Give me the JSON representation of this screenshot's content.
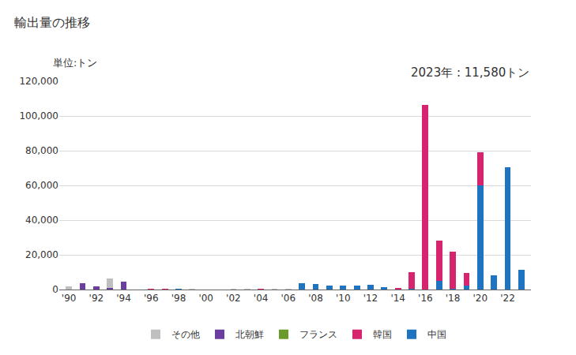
{
  "chart_data": {
    "type": "bar",
    "title": "輸出量の推移",
    "y_label": "単位:トン",
    "annotations": [
      "2023年 : 11,580トン"
    ],
    "categories": [
      "'90",
      null,
      "'92",
      null,
      "'94",
      null,
      "'96",
      null,
      "'98",
      null,
      "'00",
      null,
      "'02",
      null,
      "'04",
      null,
      "'06",
      null,
      "'08",
      null,
      "'10",
      null,
      "'12",
      null,
      "'14",
      null,
      "'16",
      null,
      "'18",
      null,
      "'20",
      null,
      "'22",
      null
    ],
    "series": [
      {
        "name": "中国",
        "color": "#1f74c1",
        "values": [
          0,
          0,
          0,
          0,
          0,
          0,
          0,
          0,
          300,
          0,
          0,
          0,
          0,
          0,
          0,
          0,
          0,
          3800,
          3000,
          2200,
          2500,
          2200,
          2800,
          1500,
          0,
          300,
          0,
          5000,
          300,
          2500,
          60000,
          8300,
          70500,
          11580
        ]
      },
      {
        "name": "韓国",
        "color": "#d6246e",
        "values": [
          0,
          0,
          0,
          0,
          0,
          0,
          300,
          300,
          0,
          0,
          0,
          0,
          0,
          0,
          300,
          0,
          0,
          0,
          0,
          0,
          0,
          0,
          0,
          0,
          500,
          9500,
          106500,
          23000,
          21500,
          7000,
          19000,
          0,
          0,
          0
        ]
      },
      {
        "name": "フランス",
        "color": "#6a9a2a",
        "values": [
          0,
          0,
          0,
          0,
          0,
          0,
          0,
          0,
          0,
          0,
          0,
          0,
          0,
          0,
          0,
          0,
          0,
          0,
          0,
          0,
          0,
          0,
          0,
          0,
          0,
          0,
          0,
          0,
          0,
          0,
          0,
          0,
          0,
          0
        ]
      },
      {
        "name": "北朝鮮",
        "color": "#6b3fa0",
        "values": [
          0,
          3500,
          1800,
          1000,
          4500,
          0,
          0,
          0,
          0,
          0,
          0,
          0,
          0,
          0,
          0,
          0,
          0,
          0,
          0,
          0,
          0,
          0,
          0,
          0,
          0,
          0,
          0,
          0,
          0,
          0,
          0,
          0,
          0,
          0
        ]
      },
      {
        "name": "その他",
        "color": "#bfbfbf",
        "values": [
          2000,
          0,
          0,
          5500,
          0,
          0,
          0,
          0,
          0,
          200,
          0,
          0,
          300,
          300,
          0,
          200,
          300,
          0,
          0,
          0,
          0,
          0,
          0,
          0,
          0,
          0,
          0,
          0,
          0,
          0,
          0,
          0,
          0,
          0
        ]
      }
    ],
    "ylim": [
      0,
      120000
    ],
    "yticks": [
      0,
      {
        "value": 20000,
        "label": "20,000"
      },
      {
        "value": 40000,
        "label": "40,000"
      },
      {
        "value": 60000,
        "label": "60,000"
      },
      {
        "value": 80000,
        "label": "80,000"
      },
      {
        "value": 100000,
        "label": "100,000"
      },
      {
        "value": 120000,
        "label": "120,000"
      }
    ],
    "stacked": true,
    "grid": true,
    "legend": "bottom"
  }
}
